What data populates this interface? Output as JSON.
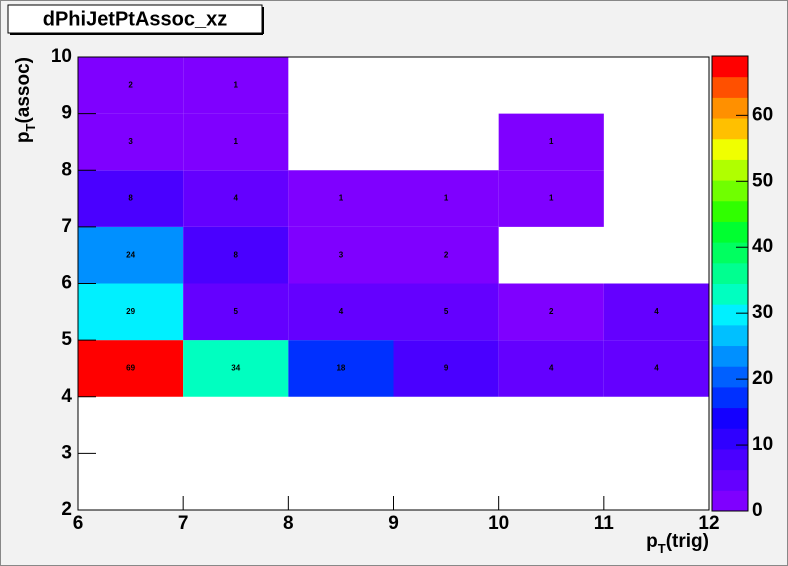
{
  "chart_data": {
    "type": "heatmap",
    "title": "dPhiJetPtAssoc_xz",
    "xlabel": "pT(trig)",
    "ylabel": "pT(assoc)",
    "xbins": [
      6,
      7,
      8,
      9,
      10,
      11,
      12
    ],
    "ybins": [
      2,
      3,
      4,
      5,
      6,
      7,
      8,
      9,
      10
    ],
    "z": [
      [
        null,
        null,
        null,
        null,
        null,
        null
      ],
      [
        null,
        null,
        null,
        null,
        null,
        null
      ],
      [
        69,
        34,
        18,
        9,
        4,
        4
      ],
      [
        29,
        5,
        4,
        5,
        2,
        4
      ],
      [
        24,
        8,
        3,
        2,
        null,
        null
      ],
      [
        8,
        4,
        1,
        1,
        1,
        null
      ],
      [
        3,
        1,
        null,
        null,
        1,
        null
      ],
      [
        2,
        1,
        null,
        null,
        null,
        null
      ]
    ],
    "xlim": [
      6,
      12
    ],
    "ylim": [
      2,
      10
    ],
    "xticks": [
      6,
      7,
      8,
      9,
      10,
      11,
      12
    ],
    "yticks": [
      2,
      3,
      4,
      5,
      6,
      7,
      8,
      9,
      10
    ],
    "zlim": [
      0,
      69
    ],
    "zticks": [
      0,
      10,
      20,
      30,
      40,
      50,
      60
    ],
    "palette": [
      "#7f00ff",
      "#6400ff",
      "#4a00ff",
      "#2f00ff",
      "#1400ff",
      "#0030ff",
      "#0060ff",
      "#0090ff",
      "#00c0ff",
      "#00f0ff",
      "#00ffc0",
      "#00ff90",
      "#00ff60",
      "#00ff30",
      "#30ff00",
      "#70ff00",
      "#b0ff00",
      "#f0ff00",
      "#ffc000",
      "#ff9000",
      "#ff5000",
      "#ff0000"
    ]
  }
}
